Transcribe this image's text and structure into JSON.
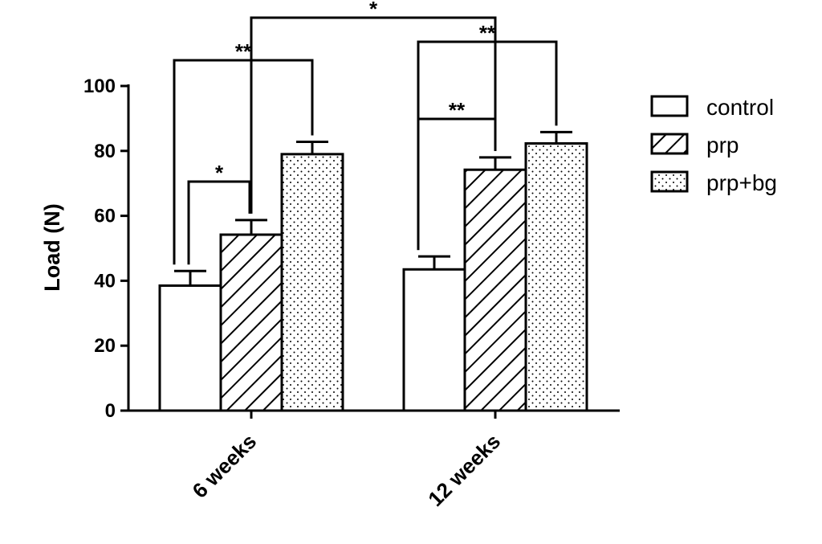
{
  "chart_data": {
    "type": "bar",
    "ylabel": "Load (N)",
    "ylim": [
      0,
      100
    ],
    "yticks": [
      "0",
      "20",
      "40",
      "60",
      "80",
      "100"
    ],
    "categories": [
      "6 weeks",
      "12 weeks"
    ],
    "series": [
      {
        "name": "control",
        "pattern": "empty",
        "values": [
          38.5,
          43.5
        ],
        "errors": [
          4.5,
          4.0
        ]
      },
      {
        "name": "prp",
        "pattern": "hatch",
        "values": [
          54.2,
          74.2
        ],
        "errors": [
          4.5,
          3.8
        ]
      },
      {
        "name": "prp+bg",
        "pattern": "dots",
        "values": [
          79.0,
          82.3
        ],
        "errors": [
          3.8,
          3.5
        ]
      }
    ],
    "legend_position": "right",
    "significance": [
      {
        "label": "*",
        "from": [
          0,
          0
        ],
        "to": [
          0,
          1
        ]
      },
      {
        "label": "**",
        "from": [
          0,
          0
        ],
        "to": [
          0,
          2
        ]
      },
      {
        "label": "*",
        "from": [
          0,
          1
        ],
        "to": [
          1,
          1
        ]
      },
      {
        "label": "**",
        "from": [
          1,
          0
        ],
        "to": [
          1,
          1
        ]
      },
      {
        "label": "**",
        "from": [
          1,
          0
        ],
        "to": [
          1,
          2
        ]
      }
    ]
  }
}
